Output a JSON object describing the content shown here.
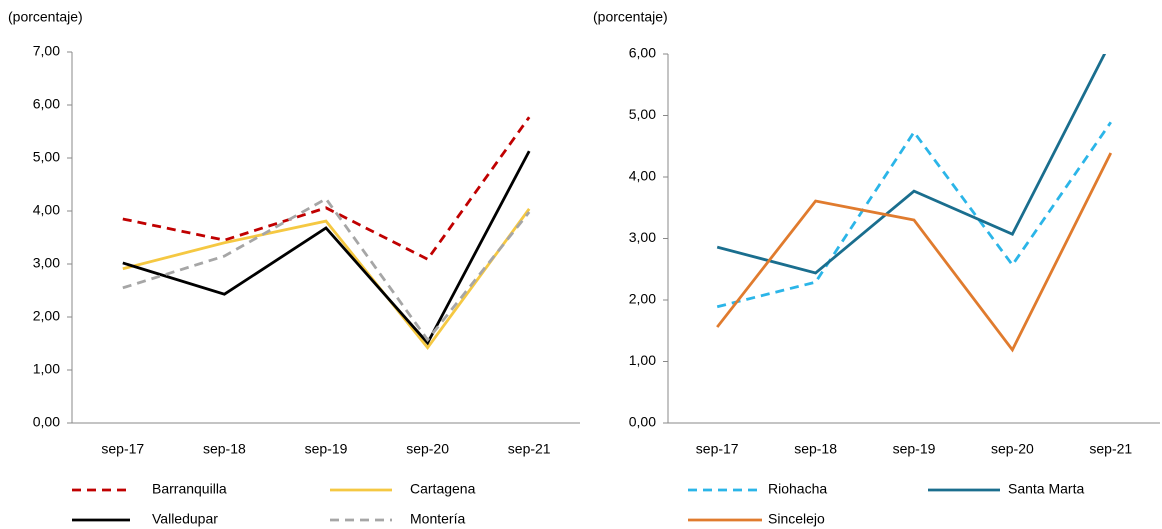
{
  "chart_data": [
    {
      "type": "line",
      "y_label": "(porcentaje)",
      "categories": [
        "sep-17",
        "sep-18",
        "sep-19",
        "sep-20",
        "sep-21"
      ],
      "ylim": [
        0,
        7
      ],
      "yticks": [
        {
          "value": 0,
          "label": "0,00"
        },
        {
          "value": 1,
          "label": "1,00"
        },
        {
          "value": 2,
          "label": "2,00"
        },
        {
          "value": 3,
          "label": "3,00"
        },
        {
          "value": 4,
          "label": "4,00"
        },
        {
          "value": 5,
          "label": "5,00"
        },
        {
          "value": 6,
          "label": "6,00"
        },
        {
          "value": 7,
          "label": "7,00"
        }
      ],
      "grid": false,
      "series": [
        {
          "name": "Barranquilla",
          "color": "#c00000",
          "style": "dashed",
          "values": [
            3.85,
            3.45,
            4.06,
            3.09,
            5.77
          ]
        },
        {
          "name": "Cartagena",
          "color": "#f5c842",
          "style": "solid",
          "values": [
            2.91,
            3.4,
            3.81,
            1.42,
            4.04
          ]
        },
        {
          "name": "Valledupar",
          "color": "#000000",
          "style": "solid",
          "values": [
            3.02,
            2.43,
            3.68,
            1.51,
            5.13
          ]
        },
        {
          "name": "Montería",
          "color": "#a6a6a6",
          "style": "dashed",
          "values": [
            2.55,
            3.15,
            4.23,
            1.57,
            3.98
          ]
        }
      ]
    },
    {
      "type": "line",
      "y_label": "(porcentaje)",
      "categories": [
        "sep-17",
        "sep-18",
        "sep-19",
        "sep-20",
        "sep-21"
      ],
      "ylim": [
        0,
        6
      ],
      "yticks": [
        {
          "value": 0,
          "label": "0,00"
        },
        {
          "value": 1,
          "label": "1,00"
        },
        {
          "value": 2,
          "label": "2,00"
        },
        {
          "value": 3,
          "label": "3,00"
        },
        {
          "value": 4,
          "label": "4,00"
        },
        {
          "value": 5,
          "label": "5,00"
        },
        {
          "value": 6,
          "label": "6,00"
        }
      ],
      "grid": false,
      "series": [
        {
          "name": "Riohacha",
          "color": "#2bb5e8",
          "style": "dashed",
          "values": [
            1.89,
            2.29,
            4.73,
            2.57,
            4.89
          ]
        },
        {
          "name": "Santa Marta",
          "color": "#1a6e8e",
          "style": "solid",
          "values": [
            2.86,
            2.44,
            3.77,
            3.07,
            6.2
          ]
        },
        {
          "name": "Sincelejo",
          "color": "#e07b2e",
          "style": "solid",
          "values": [
            1.56,
            3.61,
            3.3,
            1.19,
            4.39
          ]
        }
      ]
    }
  ]
}
